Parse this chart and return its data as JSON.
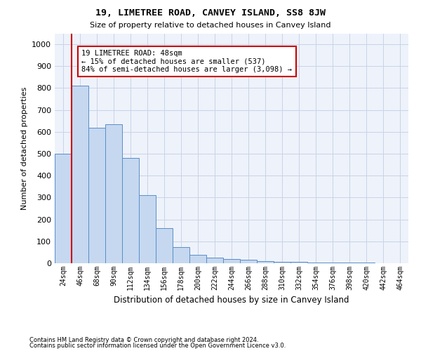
{
  "title": "19, LIMETREE ROAD, CANVEY ISLAND, SS8 8JW",
  "subtitle": "Size of property relative to detached houses in Canvey Island",
  "xlabel": "Distribution of detached houses by size in Canvey Island",
  "ylabel": "Number of detached properties",
  "footnote1": "Contains HM Land Registry data © Crown copyright and database right 2024.",
  "footnote2": "Contains public sector information licensed under the Open Government Licence v3.0.",
  "categories": [
    "24sqm",
    "46sqm",
    "68sqm",
    "90sqm",
    "112sqm",
    "134sqm",
    "156sqm",
    "178sqm",
    "200sqm",
    "222sqm",
    "244sqm",
    "266sqm",
    "288sqm",
    "310sqm",
    "332sqm",
    "354sqm",
    "376sqm",
    "398sqm",
    "420sqm",
    "442sqm",
    "464sqm"
  ],
  "values": [
    500,
    810,
    620,
    635,
    480,
    310,
    160,
    75,
    40,
    25,
    20,
    15,
    10,
    8,
    5,
    4,
    3,
    2,
    2,
    1,
    1
  ],
  "bar_color": "#c5d8f0",
  "bar_edge_color": "#5b8dc8",
  "vline_x": 1.0,
  "vline_color": "#cc0000",
  "annotation_text": "19 LIMETREE ROAD: 48sqm\n← 15% of detached houses are smaller (537)\n84% of semi-detached houses are larger (3,098) →",
  "annotation_box_color": "#ffffff",
  "annotation_box_edge": "#cc0000",
  "ylim": [
    0,
    1050
  ],
  "yticks": [
    0,
    100,
    200,
    300,
    400,
    500,
    600,
    700,
    800,
    900,
    1000
  ],
  "grid_color": "#c8d4e8",
  "bg_color": "#eef2fa"
}
